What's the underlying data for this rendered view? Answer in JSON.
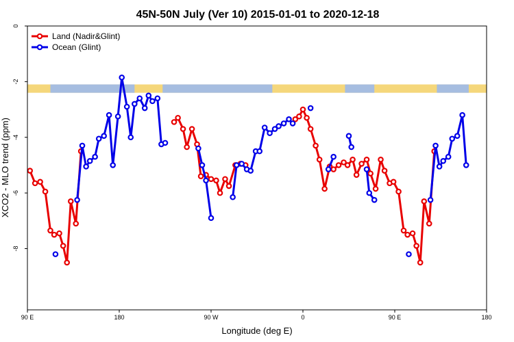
{
  "chart_data": {
    "type": "line",
    "title": "45N-50N July (Ver 10)   2015-01-01 to 2020-12-18",
    "xlabel": "Longitude (deg E)",
    "ylabel": "XCO2 - MLO trend (ppm)",
    "xlim": [
      90,
      450
    ],
    "ylim": [
      -10.2,
      0
    ],
    "x_ticks": [
      {
        "value": 90,
        "label": "90 E"
      },
      {
        "value": 162,
        "label": "180"
      },
      {
        "value": 234,
        "label": "90 W"
      },
      {
        "value": 306,
        "label": "0"
      },
      {
        "value": 378,
        "label": "90 E"
      },
      {
        "value": 450,
        "label": "180"
      }
    ],
    "y_ticks": [
      {
        "value": 0,
        "label": "0"
      },
      {
        "value": -2,
        "label": "-2"
      },
      {
        "value": -4,
        "label": "-4"
      },
      {
        "value": -6,
        "label": "-6"
      },
      {
        "value": -8,
        "label": "-8"
      }
    ],
    "map_strip": {
      "y_top": -2.1,
      "y_bottom": -2.4,
      "land_color": "#F5D77B",
      "ocean_color": "#A6BDE0"
    },
    "legend": {
      "position": "top-left"
    },
    "series": [
      {
        "name": "Land (Nadir&Glint)",
        "color": "#E80000",
        "points": [
          [
            92,
            -5.2
          ],
          [
            96,
            -5.65
          ],
          [
            100,
            -5.6
          ],
          [
            104,
            -5.95
          ],
          [
            108,
            -7.35
          ],
          [
            111,
            -7.5
          ],
          [
            115,
            -7.45
          ],
          [
            118,
            -7.9
          ],
          [
            121,
            -8.5
          ],
          [
            124,
            -6.3
          ],
          [
            128,
            -7.1
          ],
          [
            132,
            -4.5
          ],
          [
            null,
            null
          ],
          [
            205,
            -3.45
          ],
          [
            208,
            -3.3
          ],
          [
            212,
            -3.7
          ],
          [
            215,
            -4.35
          ],
          [
            219,
            -3.7
          ],
          [
            223,
            -4.25
          ],
          [
            226,
            -5.4
          ],
          [
            230,
            -5.35
          ],
          [
            234,
            -5.5
          ],
          [
            238,
            -5.55
          ],
          [
            241,
            -6.0
          ],
          [
            245,
            -5.5
          ],
          [
            248,
            -5.75
          ],
          [
            253,
            -5.0
          ],
          [
            257,
            -4.95
          ],
          [
            261,
            -5.0
          ],
          [
            null,
            null
          ],
          [
            300,
            -3.35
          ],
          [
            303,
            -3.25
          ],
          [
            306,
            -3.0
          ],
          [
            309,
            -3.3
          ],
          [
            312,
            -3.7
          ],
          [
            316,
            -4.3
          ],
          [
            319,
            -4.8
          ],
          [
            323,
            -5.85
          ],
          [
            327,
            -5.05
          ],
          [
            330,
            -5.15
          ],
          [
            334,
            -5.0
          ],
          [
            338,
            -4.9
          ],
          [
            341,
            -5.0
          ],
          [
            345,
            -4.8
          ],
          [
            348,
            -5.35
          ],
          [
            352,
            -4.95
          ],
          [
            356,
            -4.8
          ],
          [
            359,
            -5.3
          ],
          [
            363,
            -5.85
          ],
          [
            367,
            -4.8
          ],
          [
            370,
            -5.2
          ],
          [
            374,
            -5.65
          ],
          [
            377,
            -5.6
          ],
          [
            381,
            -5.95
          ],
          [
            385,
            -7.35
          ],
          [
            388,
            -7.5
          ],
          [
            392,
            -7.45
          ],
          [
            395,
            -7.9
          ],
          [
            398,
            -8.5
          ],
          [
            401,
            -6.3
          ],
          [
            405,
            -7.1
          ],
          [
            409,
            -4.5
          ]
        ]
      },
      {
        "name": "Ocean (Glint)",
        "color": "#0000E8",
        "points": [
          [
            112,
            -8.2
          ],
          [
            null,
            null
          ],
          [
            129,
            -6.25
          ],
          [
            133,
            -4.3
          ],
          [
            136,
            -5.05
          ],
          [
            139,
            -4.85
          ],
          [
            143,
            -4.7
          ],
          [
            146,
            -4.05
          ],
          [
            150,
            -3.95
          ],
          [
            154,
            -3.2
          ],
          [
            157,
            -5.0
          ],
          [
            161,
            -3.25
          ],
          [
            164,
            -1.85
          ],
          [
            168,
            -2.9
          ],
          [
            171,
            -4.0
          ],
          [
            174,
            -2.8
          ],
          [
            178,
            -2.6
          ],
          [
            182,
            -2.95
          ],
          [
            185,
            -2.5
          ],
          [
            188,
            -2.7
          ],
          [
            192,
            -2.6
          ],
          [
            195,
            -4.25
          ],
          [
            198,
            -4.2
          ],
          [
            null,
            null
          ],
          [
            224,
            -4.4
          ],
          [
            227,
            -5.0
          ],
          [
            230,
            -5.55
          ],
          [
            234,
            -6.9
          ],
          [
            null,
            null
          ],
          [
            251,
            -6.15
          ],
          [
            254,
            -5.0
          ],
          [
            258,
            -4.95
          ],
          [
            262,
            -5.15
          ],
          [
            265,
            -5.2
          ],
          [
            269,
            -4.5
          ],
          [
            272,
            -4.5
          ],
          [
            276,
            -3.65
          ],
          [
            280,
            -3.85
          ],
          [
            284,
            -3.7
          ],
          [
            287,
            -3.6
          ],
          [
            291,
            -3.5
          ],
          [
            295,
            -3.35
          ],
          [
            298,
            -3.5
          ],
          [
            null,
            null
          ],
          [
            312,
            -2.95
          ],
          [
            null,
            null
          ],
          [
            326,
            -5.15
          ],
          [
            330,
            -4.7
          ],
          [
            null,
            null
          ],
          [
            342,
            -3.95
          ],
          [
            344,
            -4.35
          ],
          [
            null,
            null
          ],
          [
            356,
            -5.15
          ],
          [
            358,
            -6.0
          ],
          [
            362,
            -6.25
          ],
          [
            null,
            null
          ],
          [
            389,
            -8.2
          ],
          [
            null,
            null
          ],
          [
            406,
            -6.25
          ],
          [
            410,
            -4.3
          ],
          [
            413,
            -5.05
          ],
          [
            416,
            -4.85
          ],
          [
            420,
            -4.7
          ],
          [
            423,
            -4.05
          ],
          [
            427,
            -3.95
          ],
          [
            431,
            -3.2
          ],
          [
            434,
            -5.0
          ]
        ]
      }
    ]
  }
}
